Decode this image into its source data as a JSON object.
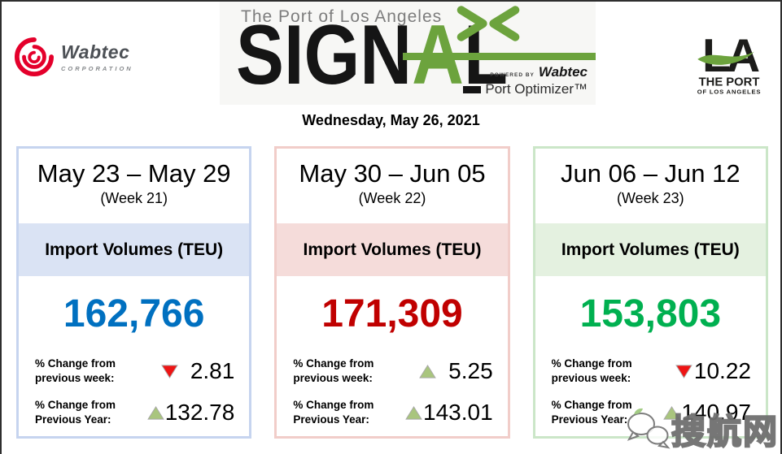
{
  "header": {
    "wabtec_logo": {
      "name": "Wabtec",
      "subtitle": "CORPORATION",
      "brand_color": "#E4002B"
    },
    "signal_logo": {
      "kicker": "The Port of Los Angeles",
      "word_black_left": "SIGN",
      "word_green": "A",
      "word_black_right": "L",
      "green": "#6CA33D",
      "powered_by": "POWERED BY",
      "powered_brand": "Wabtec",
      "product": "Port Optimizer™"
    },
    "la_logo": {
      "monogram": "LA",
      "line1": "THE PORT",
      "line2": "OF LOS ANGELES",
      "swoosh_color": "#6CA33D"
    }
  },
  "date_banner": "Wednesday, May 26, 2021",
  "cards": [
    {
      "date_range": "May 23 – May 29",
      "week_label": "(Week 21)",
      "metric_label": "Import Volumes (TEU)",
      "value": "162,766",
      "colors": {
        "accent": "#0070C0",
        "band": "#DAE3F4",
        "border": "#C6D4EF"
      },
      "stats": [
        {
          "label_line1": "% Change from",
          "label_line2": "previous week:",
          "direction": "down",
          "value": "2.81"
        },
        {
          "label_line1": "% Change from",
          "label_line2": "Previous Year:",
          "direction": "up",
          "value": "132.78"
        }
      ]
    },
    {
      "date_range": "May 30 – Jun 05",
      "week_label": "(Week 22)",
      "metric_label": "Import Volumes (TEU)",
      "value": "171,309",
      "colors": {
        "accent": "#C00000",
        "band": "#F5DCDA",
        "border": "#F1CDC9"
      },
      "stats": [
        {
          "label_line1": "% Change from",
          "label_line2": "previous week:",
          "direction": "up",
          "value": "5.25"
        },
        {
          "label_line1": "% Change from",
          "label_line2": "Previous Year:",
          "direction": "up",
          "value": "143.01"
        }
      ]
    },
    {
      "date_range": "Jun 06 – Jun 12",
      "week_label": "(Week 23)",
      "metric_label": "Import Volumes (TEU)",
      "value": "153,803",
      "colors": {
        "accent": "#00B050",
        "band": "#E4F1E0",
        "border": "#CBE6C8"
      },
      "stats": [
        {
          "label_line1": "% Change from",
          "label_line2": "previous week:",
          "direction": "down",
          "value": "10.22"
        },
        {
          "label_line1": "% Change from",
          "label_line2": "Previous Year:",
          "direction": "up",
          "value": "140.97"
        }
      ]
    }
  ],
  "icons": {
    "up_triangle_color": "#A9C57E",
    "down_triangle_color": "#EE1414",
    "triangle_stroke": "#a9a9a9"
  },
  "watermark": {
    "text": "搜航网",
    "icon": "chat-bubbles-icon"
  }
}
